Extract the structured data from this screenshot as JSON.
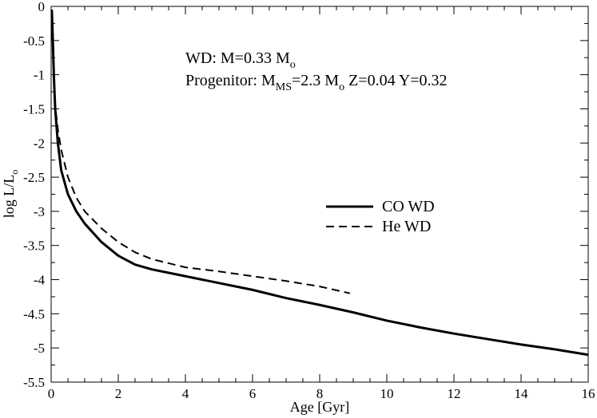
{
  "chart_data": {
    "type": "line",
    "xlabel": "Age [Gyr]",
    "ylabel": {
      "main": "log L/L",
      "sub": "o"
    },
    "xlim": [
      0,
      16
    ],
    "ylim": [
      -5.5,
      0
    ],
    "xticks": [
      0,
      2,
      4,
      6,
      8,
      10,
      12,
      14,
      16
    ],
    "yticks": [
      0,
      -0.5,
      -1,
      -1.5,
      -2,
      -2.5,
      -3,
      -3.5,
      -4,
      -4.5,
      -5,
      -5.5
    ],
    "xtick_labels": [
      "0",
      "2",
      "4",
      "6",
      "8",
      "10",
      "12",
      "14",
      "16"
    ],
    "ytick_labels": [
      "0",
      "-0.5",
      "-1",
      "-1.5",
      "-2",
      "-2.5",
      "-3",
      "-3.5",
      "-4",
      "-4.5",
      "-5",
      "-5.5"
    ],
    "annotations": {
      "line1": {
        "text": "WD: M=0.33 M",
        "sub": "o"
      },
      "line2": {
        "prefix": "Progenitor: M",
        "sub1": "MS",
        "mid": "=2.3 M",
        "sub2": "o",
        "suffix": " Z=0.04 Y=0.32"
      }
    },
    "legend_position": "center-right",
    "series": [
      {
        "name": "CO WD",
        "style": "solid",
        "color": "#000000",
        "x": [
          0.02,
          0.05,
          0.08,
          0.12,
          0.2,
          0.3,
          0.5,
          0.75,
          1.0,
          1.5,
          2.0,
          2.5,
          3.0,
          4.0,
          5.0,
          6.0,
          7.0,
          8.0,
          9.0,
          10.0,
          11.0,
          12.0,
          13.0,
          14.0,
          15.0,
          16.0
        ],
        "values": [
          -0.05,
          -0.5,
          -1.0,
          -1.5,
          -2.0,
          -2.4,
          -2.75,
          -3.0,
          -3.18,
          -3.45,
          -3.65,
          -3.78,
          -3.85,
          -3.95,
          -4.05,
          -4.15,
          -4.27,
          -4.37,
          -4.48,
          -4.6,
          -4.7,
          -4.79,
          -4.87,
          -4.95,
          -5.02,
          -5.1
        ]
      },
      {
        "name": "He WD",
        "style": "dashed",
        "color": "#000000",
        "x": [
          0.02,
          0.05,
          0.08,
          0.12,
          0.2,
          0.3,
          0.5,
          0.75,
          1.0,
          1.5,
          2.0,
          2.5,
          3.0,
          4.0,
          5.0,
          6.0,
          7.0,
          8.0,
          8.9
        ],
        "values": [
          -0.05,
          -0.5,
          -1.0,
          -1.45,
          -1.8,
          -2.1,
          -2.5,
          -2.8,
          -3.0,
          -3.25,
          -3.45,
          -3.6,
          -3.7,
          -3.82,
          -3.88,
          -3.95,
          -4.02,
          -4.1,
          -4.2
        ]
      }
    ]
  }
}
